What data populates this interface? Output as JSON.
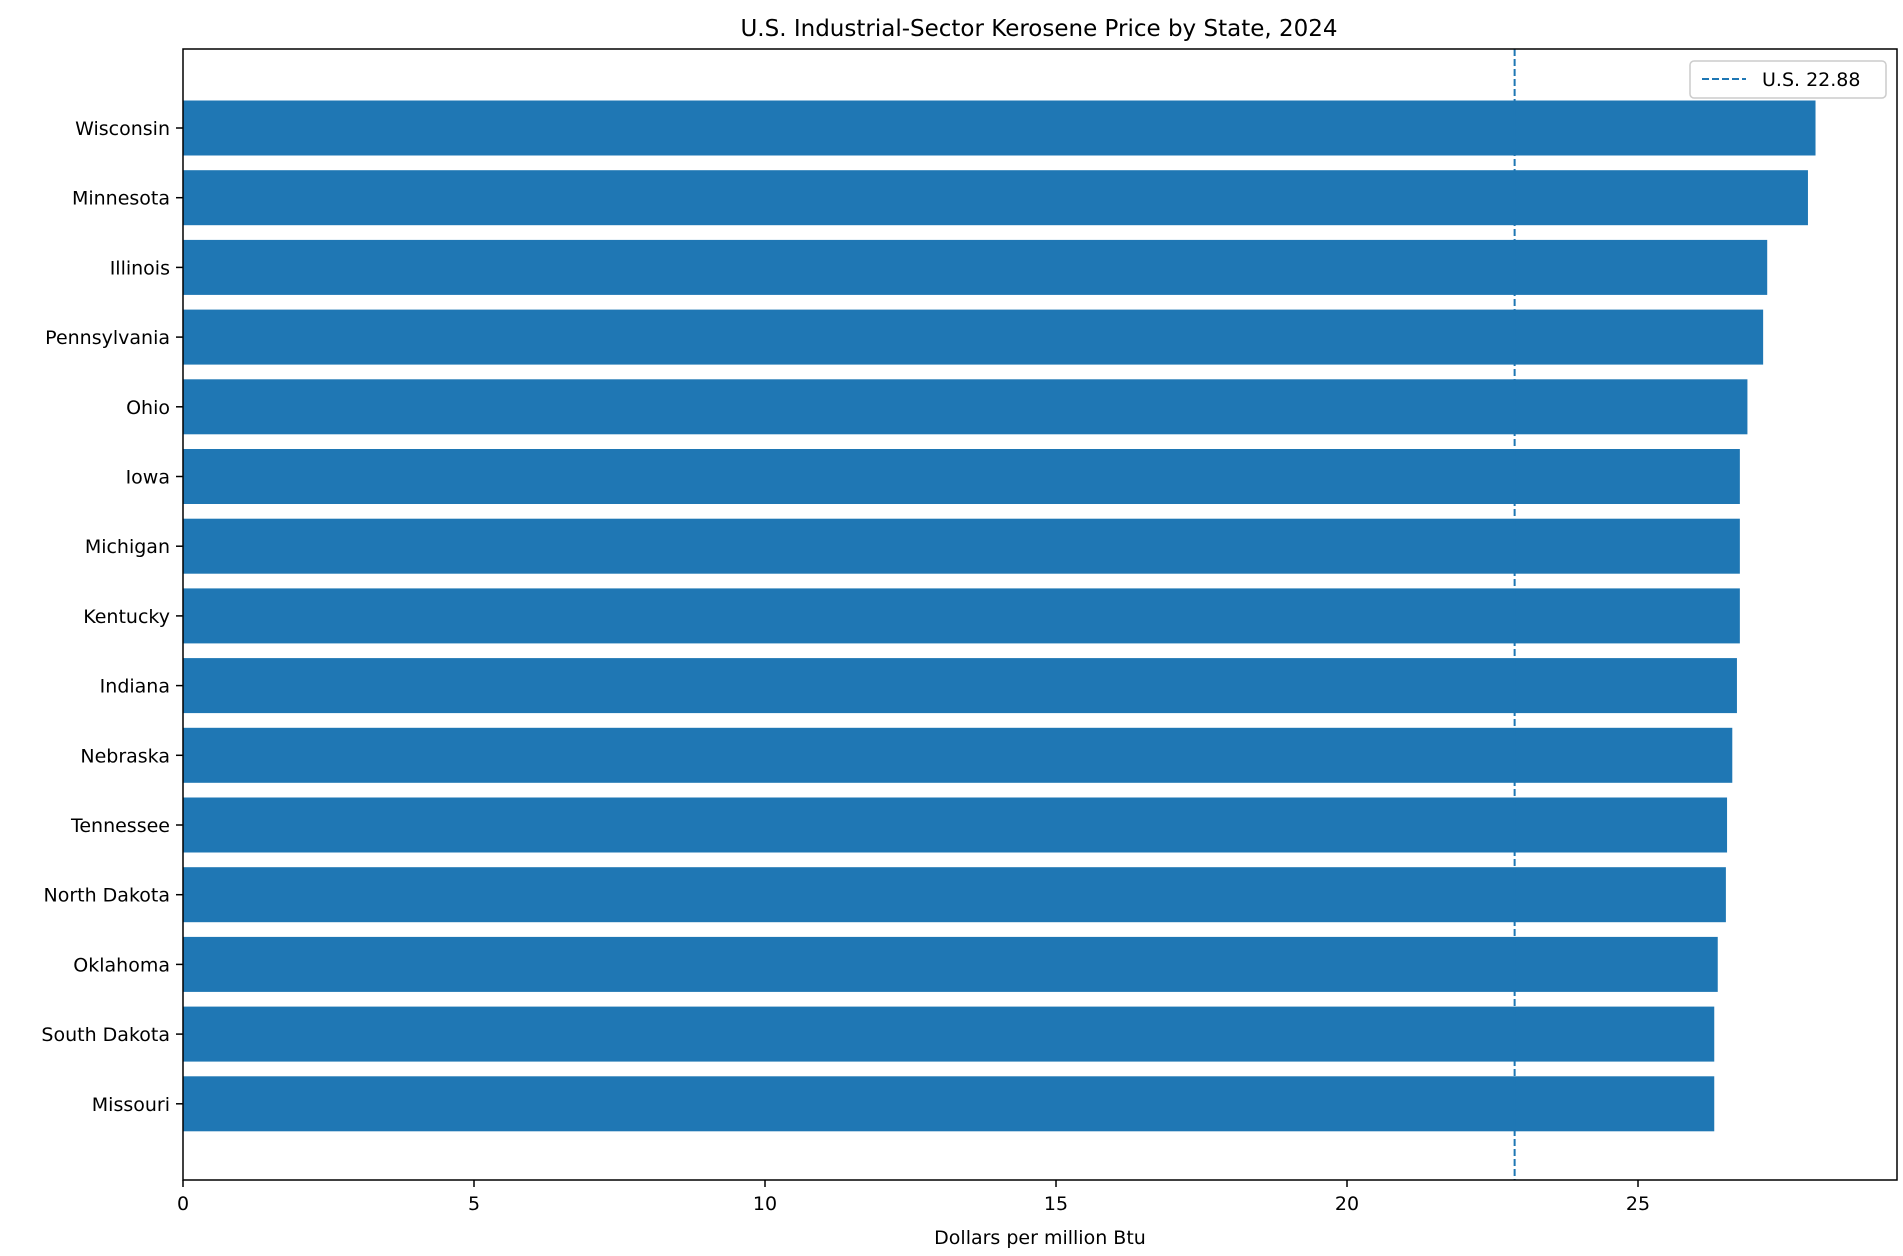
{
  "chart_data": {
    "type": "bar",
    "orientation": "horizontal",
    "title": "U.S. Industrial-Sector Kerosene Price by State, 2024",
    "xlabel": "Dollars per million Btu",
    "ylabel": "",
    "xlim": [
      0,
      29.45
    ],
    "xticks": [
      0,
      5,
      10,
      15,
      20,
      25
    ],
    "categories": [
      "Wisconsin",
      "Minnesota",
      "Illinois",
      "Pennsylvania",
      "Ohio",
      "Iowa",
      "Michigan",
      "Kentucky",
      "Indiana",
      "Nebraska",
      "Tennessee",
      "North Dakota",
      "Oklahoma",
      "South Dakota",
      "Missouri"
    ],
    "values": [
      28.05,
      27.92,
      27.22,
      27.15,
      26.88,
      26.75,
      26.75,
      26.75,
      26.7,
      26.62,
      26.53,
      26.51,
      26.37,
      26.31,
      26.31
    ],
    "bar_color": "#1f77b4",
    "reference_line": {
      "value": 22.88,
      "label": "U.S. 22.88",
      "style": "dashed",
      "color": "#1f77b4"
    },
    "legend": {
      "position": "top-right",
      "entries": [
        "U.S. 22.88"
      ]
    },
    "grid": false
  }
}
